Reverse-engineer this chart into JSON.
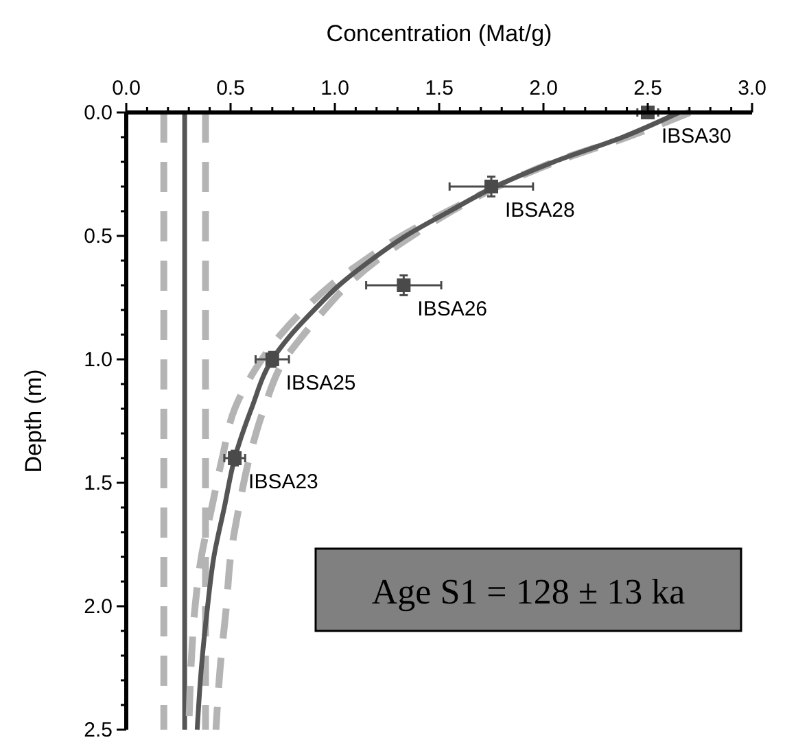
{
  "chart_data": {
    "type": "scatter",
    "xlabel": "Concentration (Mat/g)",
    "ylabel": "Depth (m)",
    "xlim": [
      0,
      3
    ],
    "ylim": [
      2.5,
      0
    ],
    "xticks": [
      {
        "value": 0,
        "label": "0.0"
      },
      {
        "value": 0.1,
        "label": null
      },
      {
        "value": 0.2,
        "label": null
      },
      {
        "value": 0.3,
        "label": null
      },
      {
        "value": 0.4,
        "label": null
      },
      {
        "value": 0.5,
        "label": "0.5"
      },
      {
        "value": 0.6,
        "label": null
      },
      {
        "value": 0.7,
        "label": null
      },
      {
        "value": 0.8,
        "label": null
      },
      {
        "value": 0.9,
        "label": null
      },
      {
        "value": 1,
        "label": "1.0"
      },
      {
        "value": 1.1,
        "label": null
      },
      {
        "value": 1.2,
        "label": null
      },
      {
        "value": 1.3,
        "label": null
      },
      {
        "value": 1.4,
        "label": null
      },
      {
        "value": 1.5,
        "label": "1.5"
      },
      {
        "value": 1.6,
        "label": null
      },
      {
        "value": 1.7,
        "label": null
      },
      {
        "value": 1.8,
        "label": null
      },
      {
        "value": 1.9,
        "label": null
      },
      {
        "value": 2,
        "label": "2.0"
      },
      {
        "value": 2.1,
        "label": null
      },
      {
        "value": 2.2,
        "label": null
      },
      {
        "value": 2.3,
        "label": null
      },
      {
        "value": 2.4,
        "label": null
      },
      {
        "value": 2.5,
        "label": "2.5"
      },
      {
        "value": 2.6,
        "label": null
      },
      {
        "value": 2.7,
        "label": null
      },
      {
        "value": 2.8,
        "label": null
      },
      {
        "value": 2.9,
        "label": null
      },
      {
        "value": 3,
        "label": "3.0"
      }
    ],
    "yticks": [
      {
        "value": 0,
        "label": "0.0"
      },
      {
        "value": 0.1,
        "label": null
      },
      {
        "value": 0.2,
        "label": null
      },
      {
        "value": 0.3,
        "label": null
      },
      {
        "value": 0.4,
        "label": null
      },
      {
        "value": 0.5,
        "label": "0.5"
      },
      {
        "value": 0.6,
        "label": null
      },
      {
        "value": 0.7,
        "label": null
      },
      {
        "value": 0.8,
        "label": null
      },
      {
        "value": 0.9,
        "label": null
      },
      {
        "value": 1,
        "label": "1.0"
      },
      {
        "value": 1.1,
        "label": null
      },
      {
        "value": 1.2,
        "label": null
      },
      {
        "value": 1.3,
        "label": null
      },
      {
        "value": 1.4,
        "label": null
      },
      {
        "value": 1.5,
        "label": "1.5"
      },
      {
        "value": 1.6,
        "label": null
      },
      {
        "value": 1.7,
        "label": null
      },
      {
        "value": 1.8,
        "label": null
      },
      {
        "value": 1.9,
        "label": null
      },
      {
        "value": 2,
        "label": "2.0"
      },
      {
        "value": 2.1,
        "label": null
      },
      {
        "value": 2.2,
        "label": null
      },
      {
        "value": 2.3,
        "label": null
      },
      {
        "value": 2.4,
        "label": null
      },
      {
        "value": 2.5,
        "label": "2.5"
      }
    ],
    "series": [
      {
        "type": "line",
        "color": "#b4b4b4",
        "line_style": "dashed",
        "x": [
          0.18,
          0.18
        ],
        "values": [
          0,
          2.5
        ]
      },
      {
        "type": "line",
        "color": "#b4b4b4",
        "line_style": "dashed",
        "x": [
          0.38,
          0.38
        ],
        "values": [
          0,
          2.5
        ]
      },
      {
        "type": "line",
        "color": "#555555",
        "line_style": "solid",
        "x": [
          0.28,
          0.28
        ],
        "values": [
          0,
          2.5
        ]
      },
      {
        "type": "line",
        "color": "#b4b4b4",
        "line_style": "dashed",
        "x": [
          2.7,
          2.4,
          2.05,
          1.78,
          1.54,
          1.32,
          1.14,
          0.98,
          0.85,
          0.74,
          0.65,
          0.52,
          0.46,
          0.41,
          0.36,
          0.33,
          0.31,
          0.3
        ],
        "values": [
          0,
          0.1,
          0.2,
          0.3,
          0.4,
          0.5,
          0.6,
          0.7,
          0.8,
          0.9,
          1.0,
          1.2,
          1.4,
          1.6,
          1.8,
          2.0,
          2.25,
          2.5
        ]
      },
      {
        "type": "line",
        "color": "#b4b4b4",
        "line_style": "dashed",
        "x": [
          2.7,
          2.4,
          2.06,
          1.78,
          1.56,
          1.37,
          1.2,
          1.06,
          0.95,
          0.85,
          0.76,
          0.66,
          0.59,
          0.54,
          0.5,
          0.48,
          0.45,
          0.43
        ],
        "values": [
          0,
          0.1,
          0.2,
          0.3,
          0.4,
          0.5,
          0.6,
          0.7,
          0.8,
          0.9,
          1.0,
          1.2,
          1.4,
          1.6,
          1.8,
          2.0,
          2.25,
          2.5
        ]
      },
      {
        "type": "line",
        "color": "#555555",
        "line_style": "solid",
        "x": [
          2.65,
          2.38,
          2.05,
          1.77,
          1.55,
          1.34,
          1.17,
          1.02,
          0.9,
          0.79,
          0.7,
          0.6,
          0.52,
          0.47,
          0.42,
          0.39,
          0.36,
          0.34
        ],
        "values": [
          0,
          0.1,
          0.2,
          0.3,
          0.4,
          0.5,
          0.6,
          0.7,
          0.8,
          0.9,
          1.0,
          1.2,
          1.4,
          1.6,
          1.8,
          2.0,
          2.25,
          2.5
        ]
      },
      {
        "type": "scatter",
        "color": "#4a4a4a",
        "marker": "square",
        "x": [
          2.5,
          1.75,
          1.33,
          0.7,
          0.52
        ],
        "values": [
          0,
          0.3,
          0.7,
          1.0,
          1.4
        ],
        "xerrors": [
          0.05,
          0.2,
          0.18,
          0.08,
          0.05
        ],
        "errors": [
          0.02,
          0.04,
          0.04,
          0.03,
          0.03
        ]
      }
    ],
    "annotations": [
      {
        "text": "IBSA30",
        "x": 2.5,
        "y": 0
      },
      {
        "text": "IBSA28",
        "x": 1.75,
        "y": 0.3
      },
      {
        "text": "IBSA26",
        "x": 1.33,
        "y": 0.7
      },
      {
        "text": "IBSA25",
        "x": 0.7,
        "y": 1.0
      },
      {
        "text": "IBSA23",
        "x": 0.52,
        "y": 1.4
      },
      "Age S1 = 128 ± 13 ka"
    ]
  }
}
